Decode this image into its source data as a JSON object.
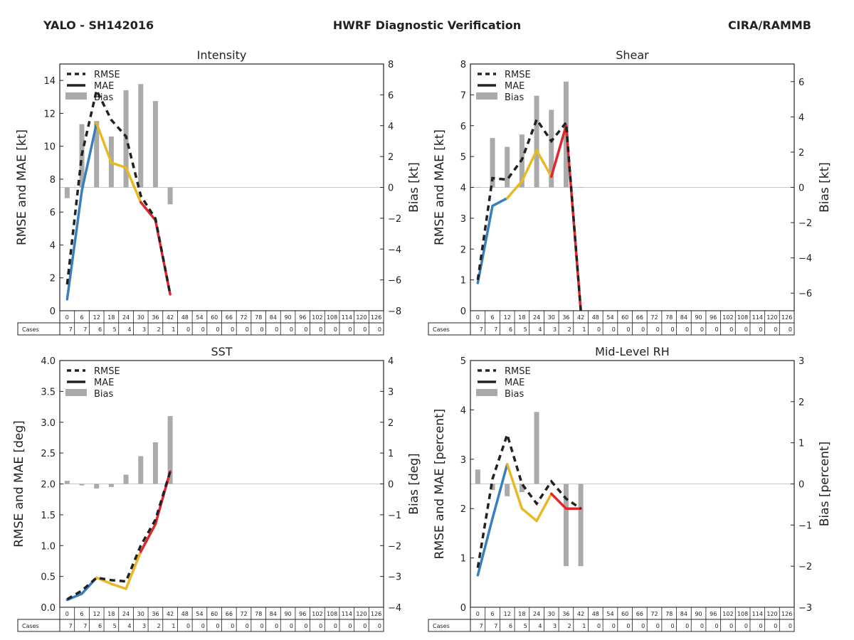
{
  "header": {
    "storm": "YALO - SH142016",
    "title": "HWRF Diagnostic Verification",
    "org": "CIRA/RAMMB"
  },
  "legend": {
    "rmse": "RMSE",
    "mae": "MAE",
    "bias": "Bias"
  },
  "colors": {
    "rmse": "#222222",
    "bias": "#aaaaaa",
    "segments": [
      "#3a7fbd",
      "#e8b923",
      "#e0262b"
    ],
    "axis": "#222222"
  },
  "cases_label": "Cases",
  "forecast_hours": [
    0,
    6,
    12,
    18,
    24,
    30,
    36,
    42,
    48,
    54,
    60,
    66,
    72,
    78,
    84,
    90,
    96,
    102,
    108,
    114,
    120,
    126
  ],
  "chart_data": [
    {
      "type": "line",
      "title": "Intensity",
      "ylabel": "RMSE and MAE [kt]",
      "ylabel2": "Bias [kt]",
      "ylim": [
        0,
        15
      ],
      "yticks": [
        "0",
        "2",
        "4",
        "6",
        "8",
        "10",
        "12",
        "14"
      ],
      "ytick_values": [
        0,
        2,
        4,
        6,
        8,
        10,
        12,
        14
      ],
      "y2lim": [
        -8,
        8
      ],
      "y2ticks": [
        "−8",
        "−6",
        "−4",
        "−2",
        "0",
        "2",
        "4",
        "6",
        "8"
      ],
      "y2tick_values": [
        -8,
        -6,
        -4,
        -2,
        0,
        2,
        4,
        6,
        8
      ],
      "x": [
        0,
        6,
        12,
        18,
        24,
        30,
        36,
        42
      ],
      "rmse": [
        1.6,
        9.5,
        13.4,
        11.6,
        10.6,
        7.0,
        5.6,
        1.0
      ],
      "mae": [
        0.7,
        7.3,
        11.4,
        9.0,
        8.7,
        6.6,
        5.5,
        1.0
      ],
      "bias": [
        -0.7,
        4.1,
        4.3,
        3.3,
        6.3,
        6.7,
        5.6,
        -1.1
      ],
      "cases": [
        7,
        7,
        6,
        5,
        4,
        3,
        2,
        1,
        0,
        0,
        0,
        0,
        0,
        0,
        0,
        0,
        0,
        0,
        0,
        0,
        0,
        0
      ]
    },
    {
      "type": "line",
      "title": "Shear",
      "ylabel": "RMSE and MAE [kt]",
      "ylabel2": "Bias [kt]",
      "ylim": [
        0,
        8
      ],
      "yticks": [
        "0",
        "1",
        "2",
        "3",
        "4",
        "5",
        "6",
        "7",
        "8"
      ],
      "ytick_values": [
        0,
        1,
        2,
        3,
        4,
        5,
        6,
        7,
        8
      ],
      "y2lim": [
        -7,
        7
      ],
      "y2ticks": [
        "−6",
        "−4",
        "−2",
        "0",
        "2",
        "4",
        "6"
      ],
      "y2tick_values": [
        -6,
        -4,
        -2,
        0,
        2,
        4,
        6
      ],
      "x": [
        0,
        6,
        12,
        18,
        24,
        30,
        36,
        42
      ],
      "rmse": [
        1.0,
        4.3,
        4.25,
        4.9,
        6.2,
        5.5,
        6.1,
        0.0
      ],
      "mae": [
        0.9,
        3.4,
        3.65,
        4.2,
        5.2,
        4.35,
        6.0,
        0.0
      ],
      "bias": [
        0.0,
        2.8,
        2.3,
        3.0,
        5.2,
        4.4,
        6.0,
        0.0
      ],
      "cases": [
        7,
        7,
        6,
        5,
        4,
        3,
        2,
        1,
        0,
        0,
        0,
        0,
        0,
        0,
        0,
        0,
        0,
        0,
        0,
        0,
        0,
        0
      ]
    },
    {
      "type": "line",
      "title": "SST",
      "ylabel": "RMSE and MAE [deg]",
      "ylabel2": "Bias [deg]",
      "ylim": [
        0,
        4
      ],
      "yticks": [
        "0.0",
        "0.5",
        "1.0",
        "1.5",
        "2.0",
        "2.5",
        "3.0",
        "3.5",
        "4.0"
      ],
      "ytick_values": [
        0,
        0.5,
        1,
        1.5,
        2,
        2.5,
        3,
        3.5,
        4
      ],
      "y2lim": [
        -4,
        4
      ],
      "y2ticks": [
        "−4",
        "−3",
        "−2",
        "−1",
        "0",
        "1",
        "2",
        "3",
        "4"
      ],
      "y2tick_values": [
        -4,
        -3,
        -2,
        -1,
        0,
        1,
        2,
        3,
        4
      ],
      "x": [
        0,
        6,
        12,
        18,
        24,
        30,
        36,
        42
      ],
      "rmse": [
        0.13,
        0.27,
        0.48,
        0.44,
        0.42,
        1.0,
        1.42,
        2.2
      ],
      "mae": [
        0.12,
        0.22,
        0.48,
        0.38,
        0.3,
        0.9,
        1.35,
        2.2
      ],
      "bias": [
        0.1,
        -0.05,
        -0.15,
        -0.1,
        0.3,
        0.9,
        1.35,
        2.2
      ],
      "cases": [
        7,
        7,
        6,
        5,
        4,
        3,
        2,
        1,
        0,
        0,
        0,
        0,
        0,
        0,
        0,
        0,
        0,
        0,
        0,
        0,
        0,
        0
      ]
    },
    {
      "type": "line",
      "title": "Mid-Level RH",
      "ylabel": "RMSE and MAE [percent]",
      "ylabel2": "Bias [percent]",
      "ylim": [
        0,
        5
      ],
      "yticks": [
        "0",
        "1",
        "2",
        "3",
        "4",
        "5"
      ],
      "ytick_values": [
        0,
        1,
        2,
        3,
        4,
        5
      ],
      "y2lim": [
        -3,
        3
      ],
      "y2ticks": [
        "−3",
        "−2",
        "−1",
        "0",
        "1",
        "2",
        "3"
      ],
      "y2tick_values": [
        -3,
        -2,
        -1,
        0,
        1,
        2,
        3
      ],
      "x": [
        0,
        6,
        12,
        18,
        24,
        30,
        36,
        42
      ],
      "rmse": [
        0.8,
        2.6,
        3.5,
        2.5,
        2.1,
        2.55,
        2.2,
        2.0
      ],
      "mae": [
        0.65,
        1.8,
        2.9,
        2.0,
        1.75,
        2.3,
        2.0,
        2.0
      ],
      "bias": [
        0.35,
        -0.15,
        -0.3,
        -0.2,
        1.75,
        0.0,
        -2.0,
        -2.0
      ],
      "cases": [
        7,
        7,
        6,
        5,
        4,
        3,
        2,
        1,
        0,
        0,
        0,
        0,
        0,
        0,
        0,
        0,
        0,
        0,
        0,
        0,
        0,
        0
      ]
    }
  ]
}
